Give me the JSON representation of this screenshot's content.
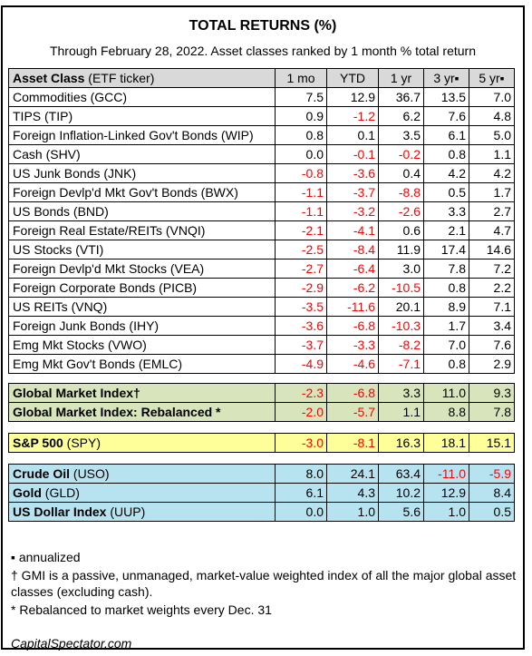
{
  "title": "TOTAL RETURNS (%)",
  "subtitle": "Through February 28, 2022. Asset classes ranked by 1 month % total return",
  "header": {
    "asset_class_bold": "Asset Class",
    "asset_class_suffix": " (ETF ticker)",
    "cols": [
      "1 mo",
      "YTD",
      "1 yr",
      "3 yr▪",
      "5 yr▪"
    ]
  },
  "colors": {
    "header_bg": "#d9d9d9",
    "gmi_bg": "#d8e4bc",
    "sp500_bg": "#ffff99",
    "commod_bg": "#b7e3f0",
    "negative": "#ff0000"
  },
  "rows": [
    {
      "name": "Commodities (GCC)",
      "v": [
        "7.5",
        "12.9",
        "36.7",
        "13.5",
        "7.0"
      ]
    },
    {
      "name": "TIPS (TIP)",
      "v": [
        "0.9",
        "-1.2",
        "6.2",
        "7.6",
        "4.8"
      ]
    },
    {
      "name": "Foreign Inflation-Linked Gov't Bonds (WIP)",
      "v": [
        "0.8",
        "0.1",
        "3.5",
        "6.1",
        "5.0"
      ]
    },
    {
      "name": "Cash (SHV)",
      "v": [
        "0.0",
        "-0.1",
        "-0.2",
        "0.8",
        "1.1"
      ]
    },
    {
      "name": "US Junk Bonds (JNK)",
      "v": [
        "-0.8",
        "-3.6",
        "0.4",
        "4.2",
        "4.2"
      ]
    },
    {
      "name": "Foreign Devlp'd Mkt Gov't Bonds (BWX)",
      "v": [
        "-1.1",
        "-3.7",
        "-8.8",
        "0.5",
        "1.7"
      ]
    },
    {
      "name": "US Bonds (BND)",
      "v": [
        "-1.1",
        "-3.2",
        "-2.6",
        "3.3",
        "2.7"
      ]
    },
    {
      "name": "Foreign Real Estate/REITs (VNQI)",
      "v": [
        "-2.1",
        "-4.1",
        "0.6",
        "2.1",
        "4.7"
      ]
    },
    {
      "name": "US Stocks (VTI)",
      "v": [
        "-2.5",
        "-8.4",
        "11.9",
        "17.4",
        "14.6"
      ]
    },
    {
      "name": "Foreign Devlp'd Mkt Stocks (VEA)",
      "v": [
        "-2.7",
        "-6.4",
        "3.0",
        "7.8",
        "7.2"
      ]
    },
    {
      "name": "Foreign Corporate Bonds (PICB)",
      "v": [
        "-2.9",
        "-6.2",
        "-10.5",
        "0.8",
        "2.2"
      ]
    },
    {
      "name": "US REITs (VNQ)",
      "v": [
        "-3.5",
        "-11.6",
        "20.1",
        "8.9",
        "7.1"
      ]
    },
    {
      "name": "Foreign Junk Bonds (IHY)",
      "v": [
        "-3.6",
        "-6.8",
        "-10.3",
        "1.7",
        "3.4"
      ]
    },
    {
      "name": "Emg Mkt Stocks (VWO)",
      "v": [
        "-3.7",
        "-3.3",
        "-8.2",
        "7.0",
        "7.6"
      ]
    },
    {
      "name": "Emg Mkt Gov't Bonds (EMLC)",
      "v": [
        "-4.9",
        "-4.6",
        "-7.1",
        "0.8",
        "2.9"
      ]
    }
  ],
  "gmi": [
    {
      "name": "Global Market Index†",
      "v": [
        "-2.3",
        "-6.8",
        "3.3",
        "11.0",
        "9.3"
      ]
    },
    {
      "name": "Global Market Index: Rebalanced *",
      "v": [
        "-2.0",
        "-5.7",
        "1.1",
        "8.8",
        "7.8"
      ]
    }
  ],
  "sp500": {
    "name_bold": "S&P 500",
    "name_suffix": " (SPY)",
    "v": [
      "-3.0",
      "-8.1",
      "16.3",
      "18.1",
      "15.1"
    ]
  },
  "commodities": [
    {
      "name_bold": "Crude Oil",
      "name_suffix": " (USO)",
      "v": [
        "8.0",
        "24.1",
        "63.4",
        "-11.0",
        "-5.9"
      ]
    },
    {
      "name_bold": "Gold",
      "name_suffix": " (GLD)",
      "v": [
        "6.1",
        "4.3",
        "10.2",
        "12.9",
        "8.4"
      ]
    },
    {
      "name_bold": "US Dollar Index",
      "name_suffix": " (UUP)",
      "v": [
        "0.0",
        "1.0",
        "5.6",
        "1.0",
        "0.5"
      ]
    }
  ],
  "notes": {
    "annualized": "▪ annualized",
    "gmi": "† GMI is a passive, unmanaged, market-value weighted index of all the major global asset classes (excluding cash).",
    "rebalanced": "* Rebalanced to market weights every Dec. 31"
  },
  "source": "CapitalSpectator.com"
}
